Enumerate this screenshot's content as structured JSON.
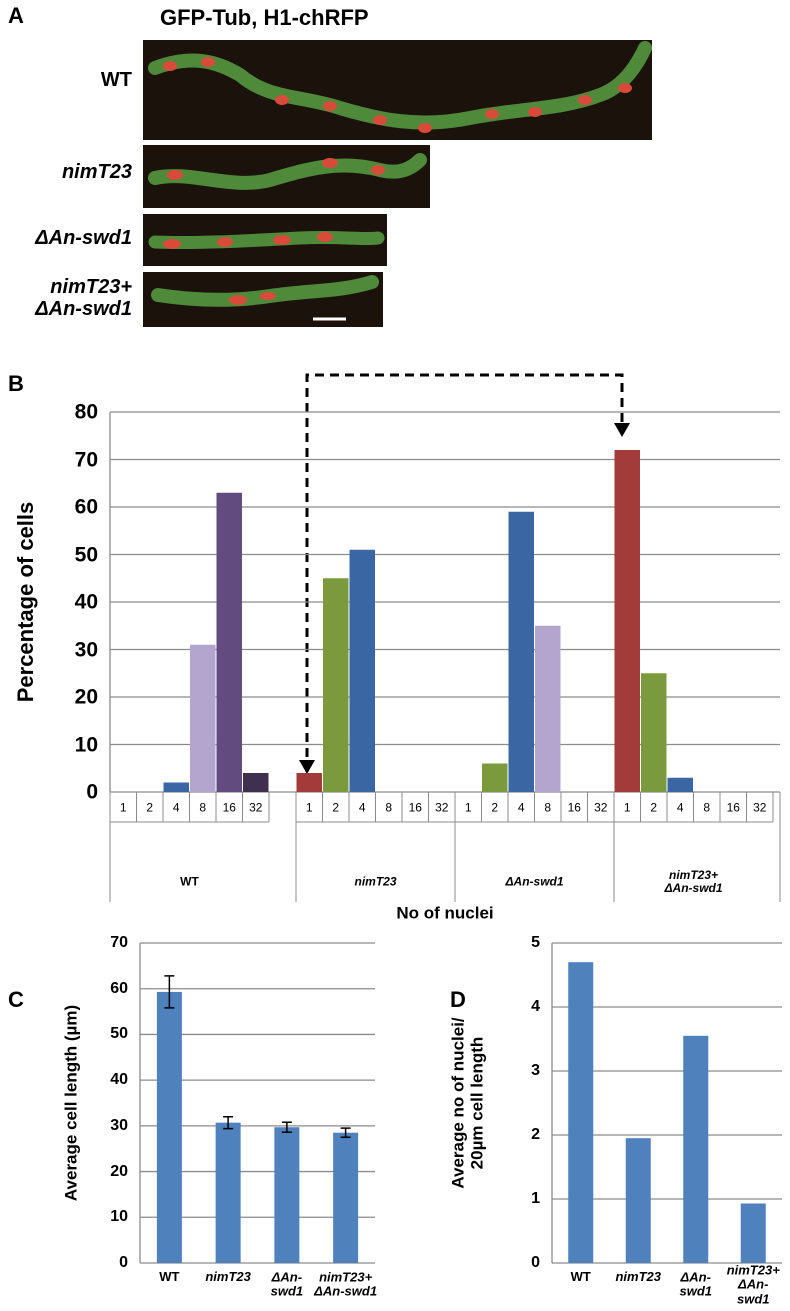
{
  "panel_a": {
    "panel": "A",
    "title": "GFP-Tub, H1-chRFP",
    "rows": [
      "WT",
      "nimT23",
      "ΔAn-swd1",
      "nimT23+\nΔAn-swd1"
    ]
  },
  "chart_data": [
    {
      "type": "grouped_bar",
      "panel": "B",
      "ylabel": "Percentage of cells",
      "xlabel": "No of nuclei",
      "categories": [
        "WT",
        "nimT23",
        "ΔAn-swd1",
        "nimT23+\nΔAn-swd1"
      ],
      "series": [
        {
          "name": "1",
          "color": "#a33b3a",
          "values": [
            0,
            4,
            0,
            72
          ]
        },
        {
          "name": "2",
          "color": "#7b9a3d",
          "values": [
            0,
            45,
            6,
            25
          ]
        },
        {
          "name": "4",
          "color": "#3a67a3",
          "values": [
            2,
            51,
            59,
            3
          ]
        },
        {
          "name": "8",
          "color": "#b4a5cf",
          "values": [
            31,
            0,
            35,
            0
          ]
        },
        {
          "name": "16",
          "color": "#624c7f",
          "values": [
            63,
            0,
            0,
            0
          ]
        },
        {
          "name": "32",
          "color": "#40304f",
          "values": [
            4,
            0,
            0,
            0
          ]
        }
      ],
      "ylim": [
        0,
        80
      ],
      "yticks": [
        0,
        10,
        20,
        30,
        40,
        50,
        60,
        70,
        80
      ],
      "grid": true
    },
    {
      "type": "bar",
      "panel": "C",
      "ylabel": "Average cell length (µm)",
      "categories": [
        "WT",
        "nimT23",
        "ΔAn-\nswd1",
        "nimT23+\nΔAn-swd1"
      ],
      "values": [
        59.3,
        30.7,
        29.7,
        28.5
      ],
      "errors": [
        3.5,
        1.3,
        1.1,
        1.0
      ],
      "color": "#4f81bd",
      "ylim": [
        0,
        70
      ],
      "yticks": [
        0,
        10,
        20,
        30,
        40,
        50,
        60,
        70
      ],
      "grid": true
    },
    {
      "type": "bar",
      "panel": "D",
      "ylabel": "Average no of nuclei/\n20µm cell length",
      "categories": [
        "WT",
        "nimT23",
        "ΔAn-\nswd1",
        "nimT23+\nΔAn-swd1"
      ],
      "values": [
        4.7,
        1.95,
        3.55,
        0.93
      ],
      "color": "#4f81bd",
      "ylim": [
        0,
        5
      ],
      "yticks": [
        0,
        1,
        2,
        3,
        4,
        5
      ],
      "grid": true
    }
  ]
}
